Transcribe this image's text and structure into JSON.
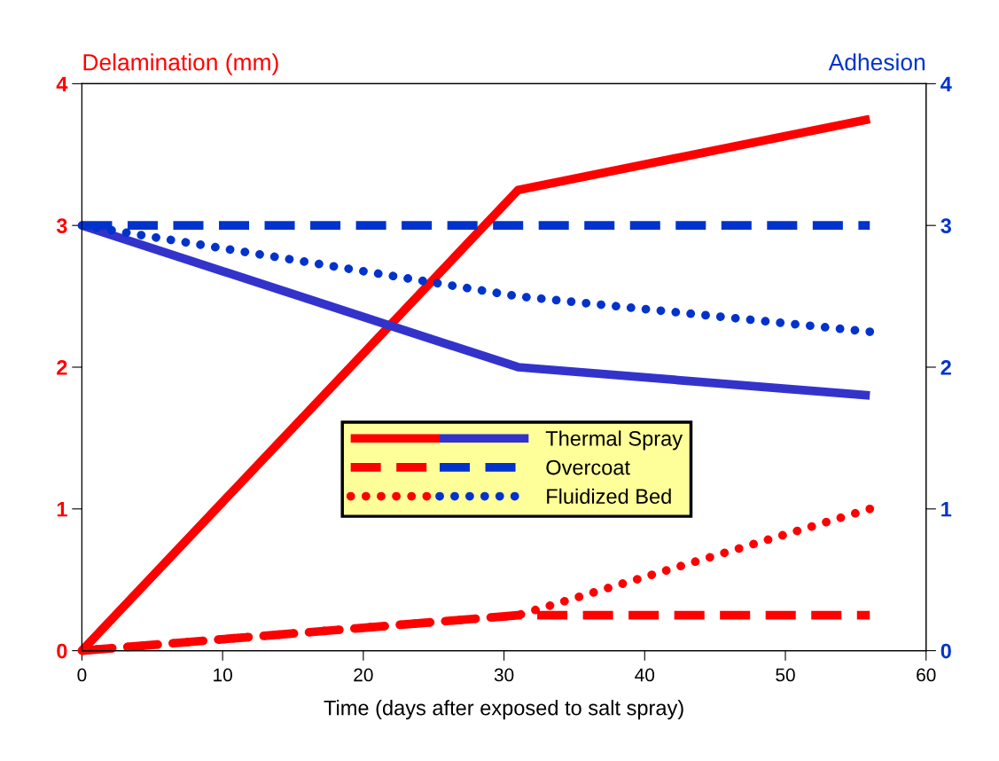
{
  "chart_data": {
    "type": "line",
    "xlabel": "Time (days after exposed to salt spray)",
    "ylabel": "Delamination (mm)",
    "y2label": "Adhesion",
    "xlim": [
      0,
      60
    ],
    "xticks": [
      0,
      10,
      20,
      30,
      40,
      50,
      60
    ],
    "ylim": [
      0,
      4
    ],
    "yticks": [
      0,
      1,
      2,
      3,
      4
    ],
    "y2lim": [
      0,
      4
    ],
    "y2ticks": [
      0,
      1,
      2,
      3,
      4
    ],
    "grid": false,
    "legend": "center",
    "marker": "none",
    "series": [
      {
        "color": "#ff0000",
        "line_style": "solid",
        "x": [
          0,
          31,
          56
        ],
        "values": [
          0,
          3.25,
          3.75
        ]
      },
      {
        "name": "Thermal Spray",
        "color": "#3333cc",
        "line_style": "solid",
        "axis": "y2",
        "x": [
          0,
          31,
          56
        ],
        "values": [
          3,
          2,
          1.8
        ]
      },
      {
        "color": "#ff0000",
        "line_style": "dashed",
        "x": [
          0,
          31,
          56
        ],
        "values": [
          0,
          0.25,
          0.25
        ]
      },
      {
        "name": "Overcoat",
        "color": "#0033cc",
        "line_style": "dashed",
        "axis": "y2",
        "x": [
          0,
          56
        ],
        "values": [
          3,
          3
        ]
      },
      {
        "color": "#ff0000",
        "line_style": "dotted",
        "x": [
          0,
          31,
          56
        ],
        "values": [
          0,
          0.25,
          1.0
        ]
      },
      {
        "name": "Fluidized Bed",
        "color": "#0033cc",
        "line_style": "dotted",
        "axis": "y2",
        "x": [
          0,
          31,
          56
        ],
        "values": [
          3,
          2.5,
          2.25
        ]
      }
    ]
  }
}
